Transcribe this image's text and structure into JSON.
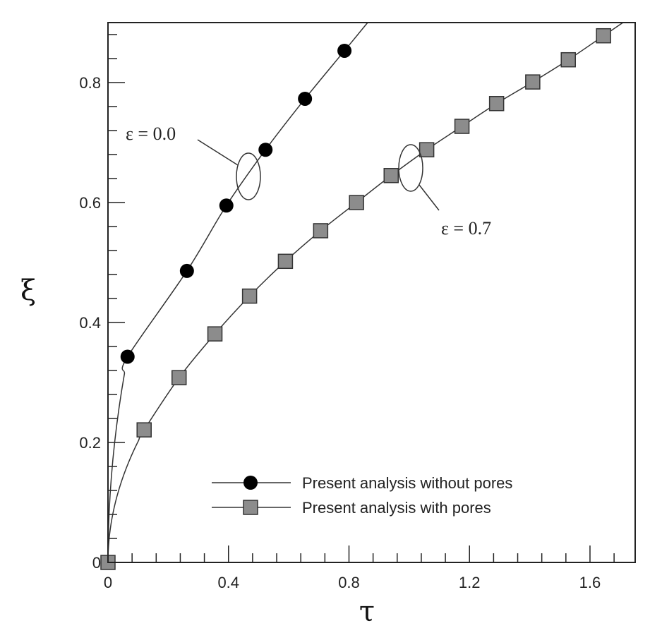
{
  "chart_data": {
    "type": "line",
    "title": "",
    "xlabel": "τ",
    "ylabel": "ξ",
    "xlim": [
      0,
      1.75
    ],
    "ylim": [
      0,
      0.9
    ],
    "x_ticks": [
      0,
      0.4,
      0.8,
      1.2,
      1.6
    ],
    "x_tick_labels": [
      "0",
      "0.4",
      "0.8",
      "1.2",
      "1.6"
    ],
    "y_ticks": [
      0,
      0.2,
      0.4,
      0.6,
      0.8
    ],
    "y_tick_labels": [
      "0",
      "0.2",
      "0.4",
      "0.6",
      "0.8"
    ],
    "grid": false,
    "legend_placement": "bottom-right",
    "series": [
      {
        "name": "Present analysis without pores",
        "marker": "circle",
        "color": "#000000",
        "x": [
          0.065,
          0.262,
          0.393,
          0.523,
          0.654,
          0.785
        ],
        "y": [
          0.343,
          0.486,
          0.595,
          0.688,
          0.773,
          0.853
        ]
      },
      {
        "name": "Present analysis with pores",
        "marker": "square",
        "color": "#8c8c8c",
        "x": [
          0,
          0.12,
          0.236,
          0.355,
          0.47,
          0.589,
          0.706,
          0.825,
          0.94,
          1.058,
          1.175,
          1.29,
          1.41,
          1.528,
          1.645
        ],
        "y": [
          0,
          0.221,
          0.308,
          0.381,
          0.444,
          0.502,
          0.553,
          0.6,
          0.645,
          0.688,
          0.727,
          0.765,
          0.801,
          0.838,
          0.878
        ]
      }
    ],
    "annotations": [
      {
        "text": "ε = 0.0",
        "series": "Present analysis without pores"
      },
      {
        "text": "ε = 0.7",
        "series": "Present analysis with pores"
      }
    ]
  }
}
